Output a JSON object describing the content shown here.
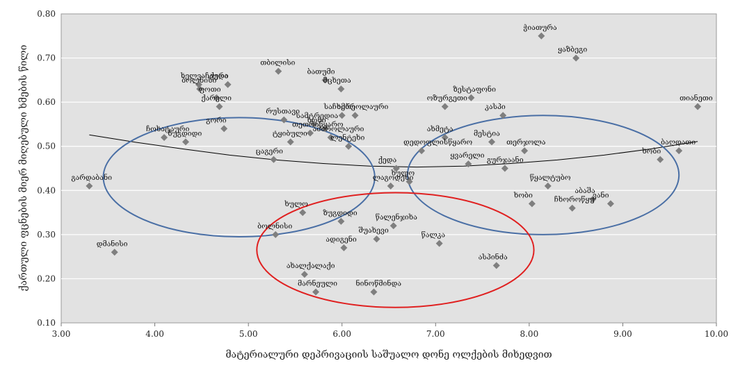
{
  "chart_data": {
    "type": "scatter",
    "xlabel": "მატერიალური დეპრივაციის საშუალო დონე ოლქების მიხედვით",
    "ylabel": "ქართული ფცნების მიერ მიღებული ხმების წილი",
    "xlim": [
      3.0,
      10.0
    ],
    "ylim": [
      0.1,
      0.8
    ],
    "x_ticks": [
      "3.00",
      "4.00",
      "5.00",
      "6.00",
      "7.00",
      "8.00",
      "9.00",
      "10.00"
    ],
    "y_ticks": [
      "0.10",
      "0.20",
      "0.30",
      "0.40",
      "0.50",
      "0.60",
      "0.70",
      "0.80"
    ],
    "grid": true,
    "background": "#e2e2e2",
    "marker_color": "#7f7f7f",
    "trendline_color": "#000000",
    "points": [
      {
        "label": "ჭიათურა",
        "x": 8.13,
        "y": 0.75
      },
      {
        "label": "ყაზბეგი",
        "x": 8.5,
        "y": 0.7
      },
      {
        "label": "თიანეთი",
        "x": 9.8,
        "y": 0.59
      },
      {
        "label": "თბილისი",
        "x": 5.32,
        "y": 0.67
      },
      {
        "label": "ბათუმი",
        "x": 5.82,
        "y": 0.65
      },
      {
        "label": "მცხეთა",
        "x": 5.99,
        "y": 0.63
      },
      {
        "label": "ხელვაჩაური",
        "x": 4.47,
        "y": 0.64
      },
      {
        "label": "ბოლნისი",
        "x": 4.48,
        "y": 0.63
      },
      {
        "label": "ქედა",
        "x": 4.78,
        "y": 0.64
      },
      {
        "label": "ფოთი",
        "x": 4.66,
        "y": 0.61
      },
      {
        "label": "ზესტაფონი",
        "x": 7.38,
        "y": 0.61
      },
      {
        "label": "ოზურგეთი",
        "x": 7.1,
        "y": 0.59
      },
      {
        "label": "კასპი",
        "x": 7.72,
        "y": 0.57
      },
      {
        "label": "საჩხერე",
        "x": 6.0,
        "y": 0.57
      },
      {
        "label": "ამბროლაური",
        "x": 6.14,
        "y": 0.57
      },
      {
        "label": "რუსთავი",
        "x": 5.38,
        "y": 0.56
      },
      {
        "label": "სამტრედია",
        "x": 5.7,
        "y": 0.55
      },
      {
        "label": "ქარელი",
        "x": 4.69,
        "y": 0.59
      },
      {
        "label": "ხონი",
        "x": 5.82,
        "y": 0.54
      },
      {
        "label": "ჩოხატაური",
        "x": 4.1,
        "y": 0.52
      },
      {
        "label": "ზუგდიდი",
        "x": 4.33,
        "y": 0.51
      },
      {
        "label": "თეთრიწყარო",
        "x": 5.66,
        "y": 0.53
      },
      {
        "label": "ამბროლაური",
        "x": 5.88,
        "y": 0.52
      },
      {
        "label": "ახმეტა",
        "x": 7.1,
        "y": 0.52
      },
      {
        "label": "მესტია",
        "x": 7.6,
        "y": 0.51
      },
      {
        "label": "დედოფლისწყარო",
        "x": 6.85,
        "y": 0.49
      },
      {
        "label": "გორი",
        "x": 4.74,
        "y": 0.54
      },
      {
        "label": "ტყიბული",
        "x": 5.45,
        "y": 0.51
      },
      {
        "label": "ბაღდათი",
        "x": 9.6,
        "y": 0.49
      },
      {
        "label": "ხობი",
        "x": 9.4,
        "y": 0.47
      },
      {
        "label": "თერჯოლა",
        "x": 7.95,
        "y": 0.49
      },
      {
        "label": "ყვარელი",
        "x": 7.35,
        "y": 0.46
      },
      {
        "label": "გურჯაანი",
        "x": 7.74,
        "y": 0.45
      },
      {
        "label": "ქედა",
        "x": 6.58,
        "y": 0.45
      },
      {
        "label": "ლენტეხი",
        "x": 6.07,
        "y": 0.5
      },
      {
        "label": "გარდაბანი",
        "x": 3.3,
        "y": 0.41
      },
      {
        "label": "ცაგერი",
        "x": 5.27,
        "y": 0.47
      },
      {
        "label": "ლაგოდეხი",
        "x": 6.52,
        "y": 0.41
      },
      {
        "label": "ხულო",
        "x": 6.72,
        "y": 0.42
      },
      {
        "label": "წყალტუბო",
        "x": 8.2,
        "y": 0.41
      },
      {
        "label": "აბაშა",
        "x": 8.68,
        "y": 0.38
      },
      {
        "label": "ვანი",
        "x": 8.87,
        "y": 0.37
      },
      {
        "label": "ხობი",
        "x": 8.03,
        "y": 0.37
      },
      {
        "label": "ჩხოროწყუ",
        "x": 8.46,
        "y": 0.36
      },
      {
        "label": "ხულო",
        "x": 5.58,
        "y": 0.35
      },
      {
        "label": "ზუგდიდი",
        "x": 5.99,
        "y": 0.33
      },
      {
        "label": "წალენჯიხა",
        "x": 6.55,
        "y": 0.32
      },
      {
        "label": "ბოლნისი",
        "x": 5.29,
        "y": 0.3
      },
      {
        "label": "შუახევი",
        "x": 6.37,
        "y": 0.29
      },
      {
        "label": "ადიგენი",
        "x": 6.02,
        "y": 0.27
      },
      {
        "label": "წალკა",
        "x": 7.04,
        "y": 0.28
      },
      {
        "label": "ასპინძა",
        "x": 7.65,
        "y": 0.23
      },
      {
        "label": "ახალქალაქი",
        "x": 5.6,
        "y": 0.21
      },
      {
        "label": "დმანისი",
        "x": 3.57,
        "y": 0.26
      },
      {
        "label": "მარნეული",
        "x": 5.72,
        "y": 0.17
      },
      {
        "label": "ნინოწმინდა",
        "x": 6.34,
        "y": 0.17
      }
    ],
    "ellipses": [
      {
        "color": "#4a6fa5",
        "cx": 4.9,
        "cy": 0.43,
        "rx": 1.45,
        "ry": 0.135
      },
      {
        "color": "#4a6fa5",
        "cx": 8.15,
        "cy": 0.435,
        "rx": 1.45,
        "ry": 0.135
      },
      {
        "color": "#e02020",
        "cx": 6.57,
        "cy": 0.265,
        "rx": 1.48,
        "ry": 0.13
      }
    ],
    "trendline": [
      [
        3.3,
        0.526
      ],
      [
        3.8,
        0.509
      ],
      [
        4.3,
        0.494
      ],
      [
        4.8,
        0.48
      ],
      [
        5.3,
        0.469
      ],
      [
        5.8,
        0.461
      ],
      [
        6.3,
        0.455
      ],
      [
        6.8,
        0.453
      ],
      [
        7.3,
        0.455
      ],
      [
        7.8,
        0.461
      ],
      [
        8.3,
        0.469
      ],
      [
        8.8,
        0.48
      ],
      [
        9.3,
        0.494
      ],
      [
        9.8,
        0.511
      ]
    ]
  }
}
